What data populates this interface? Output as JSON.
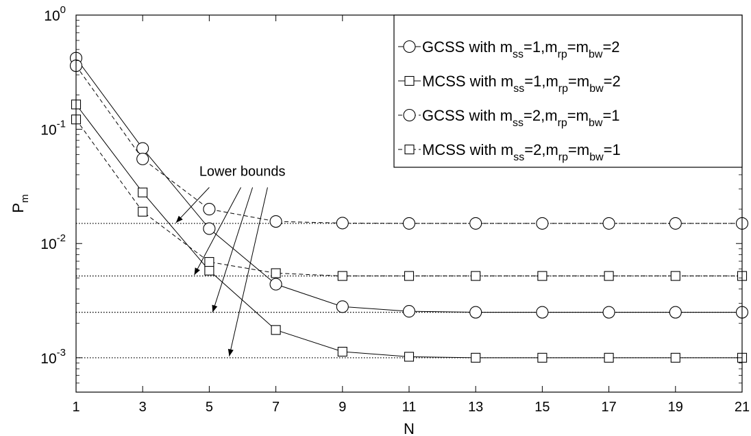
{
  "chart_data": {
    "type": "line",
    "xlabel": "N",
    "ylabel_main": "P",
    "ylabel_sub": "m",
    "xlim": [
      1,
      21
    ],
    "ylim": [
      0.0005,
      1
    ],
    "yscale": "log",
    "x": [
      1,
      3,
      5,
      7,
      9,
      11,
      13,
      15,
      17,
      19,
      21
    ],
    "x_tick_labels": [
      "1",
      "3",
      "5",
      "7",
      "9",
      "11",
      "13",
      "15",
      "17",
      "19",
      "21"
    ],
    "y_ticks": [
      {
        "value": 0.001,
        "base": "10",
        "exp": "-3"
      },
      {
        "value": 0.01,
        "base": "10",
        "exp": "-2"
      },
      {
        "value": 0.1,
        "base": "10",
        "exp": "-1"
      },
      {
        "value": 1,
        "base": "10",
        "exp": "0"
      }
    ],
    "grid": false,
    "legend_position": "top-right",
    "series": [
      {
        "key": "gcss1",
        "legend": [
          {
            "t": "GCSS with m",
            "s": false
          },
          {
            "t": "ss",
            "s": true
          },
          {
            "t": "=1,m",
            "s": false
          },
          {
            "t": "rp",
            "s": true
          },
          {
            "t": "=m",
            "s": false
          },
          {
            "t": "bw",
            "s": true
          },
          {
            "t": "=2",
            "s": false
          }
        ],
        "marker": "circle",
        "line": "solid",
        "values": [
          0.42,
          0.068,
          0.0135,
          0.0044,
          0.0028,
          0.00255,
          0.0025,
          0.0025,
          0.0025,
          0.0025,
          0.0025
        ]
      },
      {
        "key": "mcss1",
        "legend": [
          {
            "t": "MCSS with m",
            "s": false
          },
          {
            "t": "ss",
            "s": true
          },
          {
            "t": "=1,m",
            "s": false
          },
          {
            "t": "rp",
            "s": true
          },
          {
            "t": "=m",
            "s": false
          },
          {
            "t": "bw",
            "s": true
          },
          {
            "t": "=2",
            "s": false
          }
        ],
        "marker": "square",
        "line": "solid",
        "values": [
          0.165,
          0.028,
          0.0058,
          0.00175,
          0.00113,
          0.00102,
          0.001,
          0.001,
          0.001,
          0.001,
          0.001
        ]
      },
      {
        "key": "gcss2",
        "legend": [
          {
            "t": "GCSS with m",
            "s": false
          },
          {
            "t": "ss",
            "s": true
          },
          {
            "t": "=2,m",
            "s": false
          },
          {
            "t": "rp",
            "s": true
          },
          {
            "t": "=m",
            "s": false
          },
          {
            "t": "bw",
            "s": true
          },
          {
            "t": "=1",
            "s": false
          }
        ],
        "marker": "circle",
        "line": "dashed",
        "values": [
          0.36,
          0.055,
          0.02,
          0.0156,
          0.0151,
          0.015,
          0.015,
          0.015,
          0.015,
          0.015,
          0.015
        ]
      },
      {
        "key": "mcss2",
        "legend": [
          {
            "t": "MCSS with m",
            "s": false
          },
          {
            "t": "ss",
            "s": true
          },
          {
            "t": "=2,m",
            "s": false
          },
          {
            "t": "rp",
            "s": true
          },
          {
            "t": "=m",
            "s": false
          },
          {
            "t": "bw",
            "s": true
          },
          {
            "t": "=1",
            "s": false
          }
        ],
        "marker": "square",
        "line": "dashed",
        "values": [
          0.122,
          0.019,
          0.0069,
          0.0055,
          0.0052,
          0.0052,
          0.0052,
          0.0052,
          0.0052,
          0.0052,
          0.0052
        ]
      }
    ],
    "lower_bounds": [
      0.015,
      0.0052,
      0.0025,
      0.001
    ],
    "annotation": {
      "text": "Lower bounds",
      "text_at": {
        "x": 4.7,
        "y": 0.039
      },
      "arrows": [
        {
          "from": {
            "x": 5.0,
            "y": 0.031
          },
          "to": {
            "x": 4.0,
            "y": 0.0152
          }
        },
        {
          "from": {
            "x": 5.95,
            "y": 0.031
          },
          "to": {
            "x": 4.55,
            "y": 0.0053
          }
        },
        {
          "from": {
            "x": 6.3,
            "y": 0.031
          },
          "to": {
            "x": 5.1,
            "y": 0.0025
          }
        },
        {
          "from": {
            "x": 6.75,
            "y": 0.031
          },
          "to": {
            "x": 5.6,
            "y": 0.00103
          }
        }
      ]
    }
  }
}
